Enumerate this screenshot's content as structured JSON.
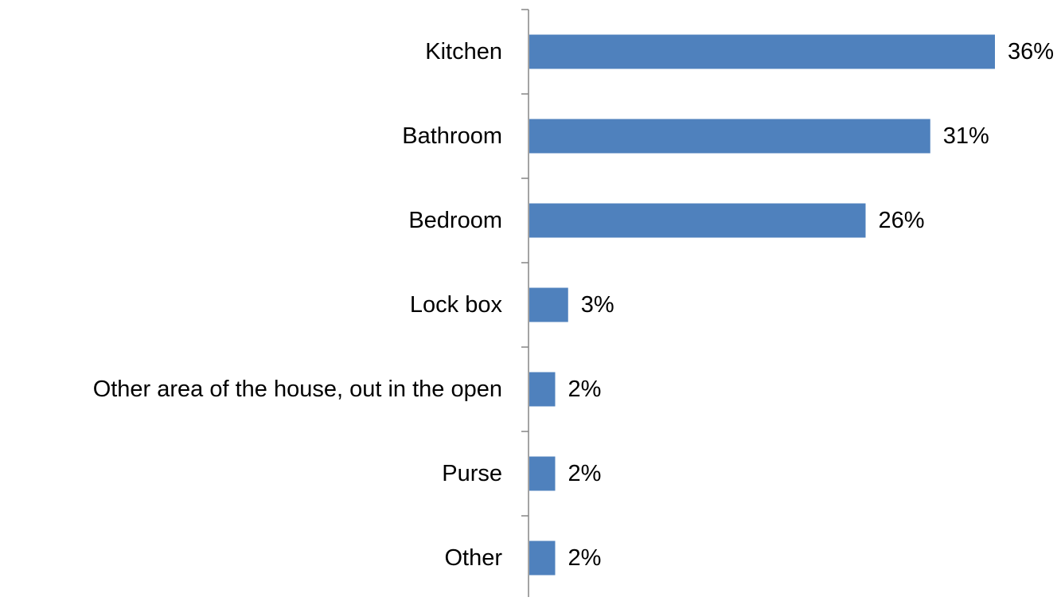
{
  "chart_data": {
    "type": "bar",
    "orientation": "horizontal",
    "categories": [
      "Kitchen",
      "Bathroom",
      "Bedroom",
      "Lock box",
      "Other area of the house, out in the open",
      "Purse",
      "Other"
    ],
    "values": [
      36,
      31,
      26,
      3,
      2,
      2,
      2
    ],
    "data_labels": [
      "36%",
      "31%",
      "26%",
      "3%",
      "2%",
      "2%",
      "2%"
    ],
    "value_unit": "%",
    "xlim": [
      0,
      40
    ],
    "title": "",
    "xlabel": "",
    "ylabel": "",
    "grid": false,
    "legend": "none",
    "bar_color": "#4F81BD",
    "axis_color": "#868686"
  }
}
